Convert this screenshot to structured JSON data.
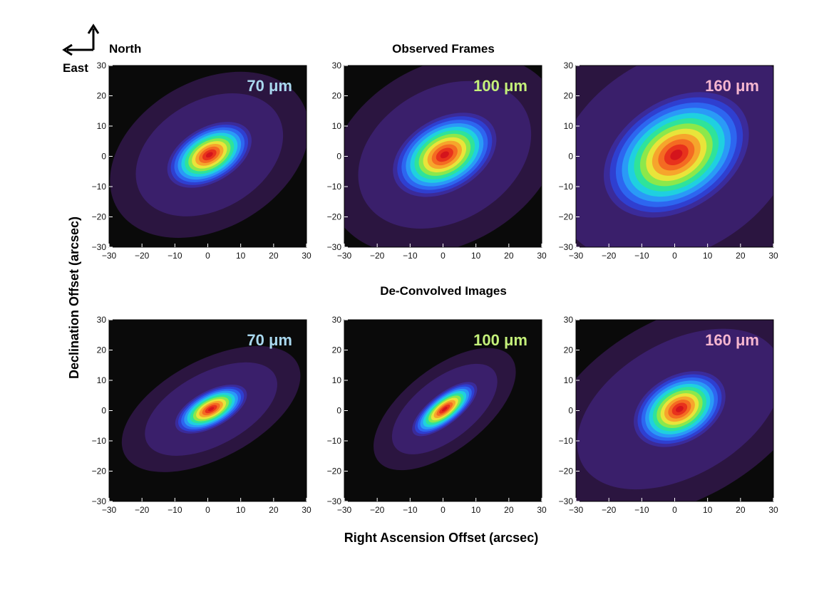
{
  "compass": {
    "north": "North",
    "east": "East"
  },
  "row_titles": [
    "Observed Frames",
    "De-Convolved Images"
  ],
  "xlabel": "Right  Ascension Offset (arcsec)",
  "ylabel": "Declination Offset (arcsec)",
  "colors": {
    "background": "#0a0a0a",
    "wl_70": "#a9d8ee",
    "wl_100": "#c4f07a",
    "wl_160": "#f5b6cf",
    "colormap": [
      "#0a0a0a",
      "#2b1540",
      "#3a1f6b",
      "#3b2b9a",
      "#2f3fd0",
      "#2d66f0",
      "#2a9af7",
      "#1fd0e0",
      "#2fe39a",
      "#8ce84b",
      "#e9e43a",
      "#f6a52c",
      "#f46b22",
      "#e8321c",
      "#d4141c"
    ]
  },
  "chart_data": [
    {
      "type": "heatmap",
      "row": "Observed Frames",
      "wavelength_label": "70 μm",
      "xlim": [
        -30,
        30
      ],
      "ylim": [
        -30,
        30
      ],
      "xticks": [
        -30,
        -20,
        -10,
        0,
        10,
        20,
        30
      ],
      "yticks": [
        -30,
        -20,
        -10,
        0,
        10,
        20,
        30
      ],
      "source": {
        "peak_x": 0.5,
        "peak_y": 0.5,
        "fwhm_major": 14,
        "fwhm_minor": 9,
        "pa_deg": -30,
        "halo_major": 24,
        "halo_minor": 18
      }
    },
    {
      "type": "heatmap",
      "row": "Observed Frames",
      "wavelength_label": "100 μm",
      "xlim": [
        -30,
        30
      ],
      "ylim": [
        -30,
        30
      ],
      "xticks": [
        -30,
        -20,
        -10,
        0,
        10,
        20,
        30
      ],
      "yticks": [
        -30,
        -20,
        -10,
        0,
        10,
        20,
        30
      ],
      "source": {
        "peak_x": 0.5,
        "peak_y": 0.5,
        "fwhm_major": 17,
        "fwhm_minor": 12,
        "pa_deg": -30,
        "halo_major": 28,
        "halo_minor": 22
      }
    },
    {
      "type": "heatmap",
      "row": "Observed Frames",
      "wavelength_label": "160 μm",
      "xlim": [
        -30,
        30
      ],
      "ylim": [
        -30,
        30
      ],
      "xticks": [
        -30,
        -20,
        -10,
        0,
        10,
        20,
        30
      ],
      "yticks": [
        -30,
        -20,
        -10,
        0,
        10,
        20,
        30
      ],
      "source": {
        "peak_x": 0.5,
        "peak_y": 0.5,
        "fwhm_major": 24,
        "fwhm_minor": 18,
        "pa_deg": -33,
        "halo_major": 40,
        "halo_minor": 32
      }
    },
    {
      "type": "heatmap",
      "row": "De-Convolved Images",
      "wavelength_label": "70 μm",
      "xlim": [
        -30,
        30
      ],
      "ylim": [
        -30,
        30
      ],
      "xticks": [
        -30,
        -20,
        -10,
        0,
        10,
        20,
        30
      ],
      "yticks": [
        -30,
        -20,
        -10,
        0,
        10,
        20,
        30
      ],
      "source": {
        "peak_x": 1,
        "peak_y": 0.5,
        "fwhm_major": 12,
        "fwhm_minor": 6,
        "pa_deg": -28,
        "halo_major": 22,
        "halo_minor": 12
      }
    },
    {
      "type": "heatmap",
      "row": "De-Convolved Images",
      "wavelength_label": "100 μm",
      "xlim": [
        -30,
        30
      ],
      "ylim": [
        -30,
        30
      ],
      "xticks": [
        -30,
        -20,
        -10,
        0,
        10,
        20,
        30
      ],
      "yticks": [
        -30,
        -20,
        -10,
        0,
        10,
        20,
        30
      ],
      "source": {
        "peak_x": 0.5,
        "peak_y": 0.5,
        "fwhm_major": 12,
        "fwhm_minor": 5,
        "pa_deg": -38,
        "halo_major": 19,
        "halo_minor": 10
      }
    },
    {
      "type": "heatmap",
      "row": "De-Convolved Images",
      "wavelength_label": "160 μm",
      "xlim": [
        -30,
        30
      ],
      "ylim": [
        -30,
        30
      ],
      "xticks": [
        -30,
        -20,
        -10,
        0,
        10,
        20,
        30
      ],
      "yticks": [
        -30,
        -20,
        -10,
        0,
        10,
        20,
        30
      ],
      "source": {
        "peak_x": 1.5,
        "peak_y": 0.5,
        "fwhm_major": 15,
        "fwhm_minor": 11,
        "pa_deg": -30,
        "halo_major": 34,
        "halo_minor": 22
      }
    }
  ]
}
